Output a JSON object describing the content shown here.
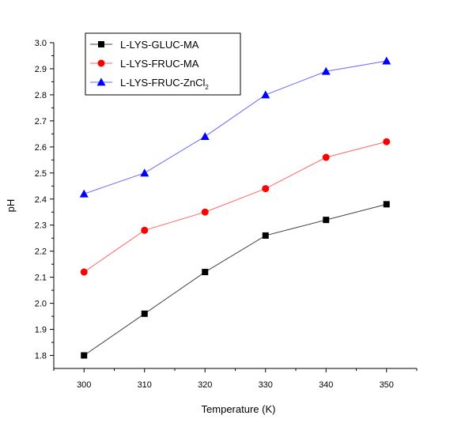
{
  "chart_data": {
    "type": "line",
    "xlabel": "Temperature (K)",
    "ylabel": "pH",
    "xlim": [
      295,
      355
    ],
    "ylim": [
      1.75,
      3.0
    ],
    "x_ticks": [
      300,
      310,
      320,
      330,
      340,
      350
    ],
    "y_ticks": [
      1.8,
      1.9,
      2.0,
      2.1,
      2.2,
      2.3,
      2.4,
      2.5,
      2.6,
      2.7,
      2.8,
      2.9,
      3.0
    ],
    "grid": false,
    "legend_position": "top-left",
    "series": [
      {
        "name": "L-LYS-GLUC-MA",
        "marker": "square",
        "color": "#000000",
        "line_color": "#444444",
        "x": [
          300,
          310,
          320,
          330,
          340,
          350
        ],
        "y": [
          1.8,
          1.96,
          2.12,
          2.26,
          2.32,
          2.38
        ]
      },
      {
        "name": "L-LYS-FRUC-MA",
        "marker": "circle",
        "color": "#ff0000",
        "line_color": "#ff6666",
        "x": [
          300,
          310,
          320,
          330,
          340,
          350
        ],
        "y": [
          2.12,
          2.28,
          2.35,
          2.44,
          2.56,
          2.62
        ]
      },
      {
        "name": "L-LYS-FRUC-ZnCl",
        "name_subscript": "2",
        "marker": "triangle",
        "color": "#0000ff",
        "line_color": "#6666ff",
        "x": [
          300,
          310,
          320,
          330,
          340,
          350
        ],
        "y": [
          2.42,
          2.5,
          2.64,
          2.8,
          2.89,
          2.93
        ]
      }
    ]
  }
}
